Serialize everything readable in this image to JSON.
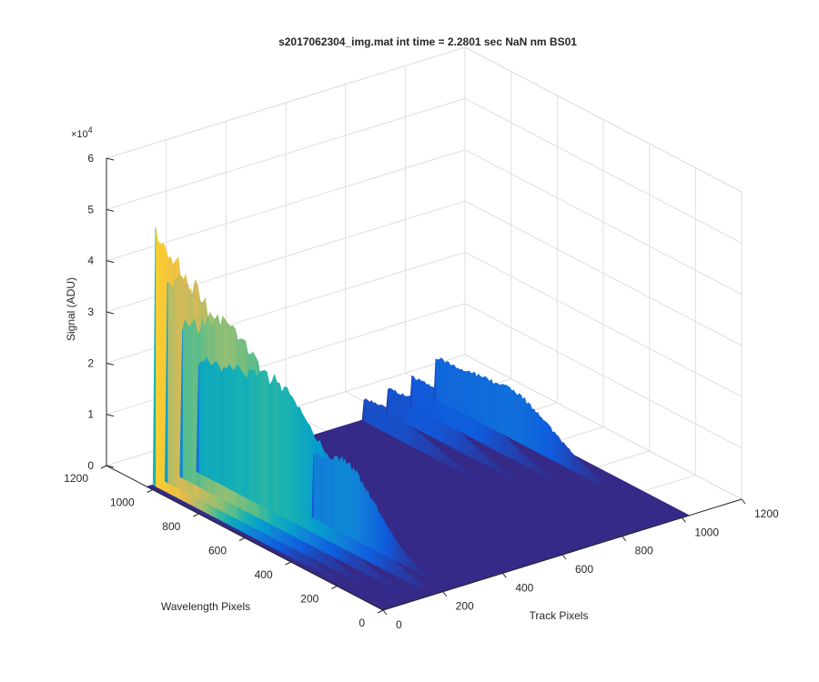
{
  "chart_data": {
    "type": "surface",
    "title": "s2017062304_img.mat int time = 2.2801 sec  NaN nm BS01",
    "xlabel": "Track Pixels",
    "ylabel": "Wavelength Pixels",
    "zlabel": "Signal (ADU)",
    "xlim": [
      0,
      1200
    ],
    "ylim": [
      0,
      1200
    ],
    "zlim": [
      0,
      60000
    ],
    "z_exponent_label": "×10",
    "z_exponent_power": "4",
    "x_ticks": [
      "0",
      "200",
      "400",
      "600",
      "800",
      "1000",
      "1200"
    ],
    "y_ticks": [
      "0",
      "200",
      "400",
      "600",
      "800",
      "1000",
      "1200"
    ],
    "z_ticks": [
      "0",
      "1",
      "2",
      "3",
      "4",
      "5",
      "6"
    ],
    "grid": true,
    "colormap": "parula",
    "colors": {
      "floor": "#352a87",
      "low": "#0f5cdd",
      "mid": "#1aa5c9",
      "high": "#80cb58",
      "peak": "#f9d12a"
    },
    "data_extent": {
      "x": [
        0,
        1024
      ],
      "y": [
        0,
        1024
      ]
    },
    "spectral_ridges": [
      {
        "track_pixel": 20,
        "peak_signal": 51000,
        "wavelength_peak": 1000
      },
      {
        "track_pixel": 60,
        "peak_signal": 43000,
        "wavelength_peak": 930
      },
      {
        "track_pixel": 110,
        "peak_signal": 36000,
        "wavelength_peak": 830
      },
      {
        "track_pixel": 165,
        "peak_signal": 27000,
        "wavelength_peak": 700
      },
      {
        "track_pixel": 225,
        "peak_signal": 15000,
        "wavelength_peak": 470
      },
      {
        "track_pixel": 960,
        "peak_signal": 10000,
        "wavelength_peak": 700
      },
      {
        "track_pixel": 880,
        "peak_signal": 7000,
        "wavelength_peak": 820
      },
      {
        "track_pixel": 800,
        "peak_signal": 6000,
        "wavelength_peak": 880
      },
      {
        "track_pixel": 720,
        "peak_signal": 5000,
        "wavelength_peak": 930
      }
    ]
  }
}
